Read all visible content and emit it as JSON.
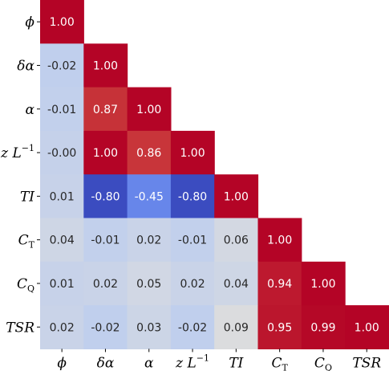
{
  "chart_data": {
    "type": "heatmap",
    "subtype": "lower-triangular correlation matrix",
    "labels": [
      {
        "id": "phi",
        "main": "ϕ",
        "sub": ""
      },
      {
        "id": "delta-alpha",
        "main": "δα",
        "sub": ""
      },
      {
        "id": "alpha",
        "main": "α",
        "sub": ""
      },
      {
        "id": "z-over-l",
        "main": "z L",
        "sub": "",
        "sup": "−1"
      },
      {
        "id": "ti",
        "main": "TI",
        "sub": ""
      },
      {
        "id": "ct",
        "main": "C",
        "sub": "T"
      },
      {
        "id": "cq",
        "main": "C",
        "sub": "Q"
      },
      {
        "id": "tsr",
        "main": "TSR",
        "sub": ""
      }
    ],
    "matrix": [
      [
        1.0
      ],
      [
        -0.02,
        1.0
      ],
      [
        -0.01,
        0.87,
        1.0
      ],
      [
        -0.0,
        1.0,
        0.86,
        1.0
      ],
      [
        0.01,
        -0.8,
        -0.45,
        -0.8,
        1.0
      ],
      [
        0.04,
        -0.01,
        0.02,
        -0.01,
        0.06,
        1.0
      ],
      [
        0.01,
        0.02,
        0.05,
        0.02,
        0.04,
        0.94,
        1.0
      ],
      [
        0.02,
        -0.02,
        0.03,
        -0.02,
        0.09,
        0.95,
        0.99,
        1.0
      ]
    ],
    "cell_text": [
      [
        "1.00"
      ],
      [
        "-0.02",
        "1.00"
      ],
      [
        "-0.01",
        "0.87",
        "1.00"
      ],
      [
        "-0.00",
        "1.00",
        "0.86",
        "1.00"
      ],
      [
        "0.01",
        "-0.80",
        "-0.45",
        "-0.80",
        "1.00"
      ],
      [
        "0.04",
        "-0.01",
        "0.02",
        "-0.01",
        "0.06",
        "1.00"
      ],
      [
        "0.01",
        "0.02",
        "0.05",
        "0.02",
        "0.04",
        "0.94",
        "1.00"
      ],
      [
        "0.02",
        "-0.02",
        "0.03",
        "-0.02",
        "0.09",
        "0.95",
        "0.99",
        "1.00"
      ]
    ],
    "colormap": "coolwarm",
    "vmin": -0.8,
    "vmax": 1.0,
    "colorbar": false,
    "grid": false
  }
}
